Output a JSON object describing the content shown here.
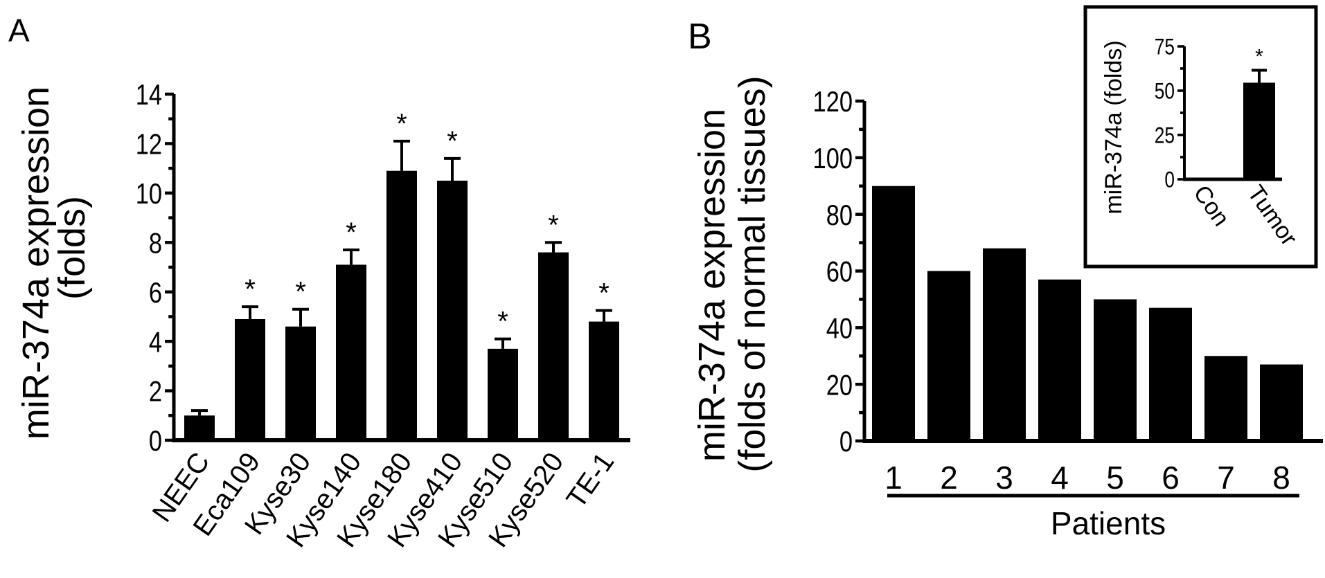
{
  "chart_data": [
    {
      "panel_label": "A",
      "type": "bar",
      "title": "",
      "xlabel": "",
      "ylabel": [
        "miR-374a expression",
        "(folds)"
      ],
      "ylim": [
        0,
        14
      ],
      "yticks": [
        0,
        2,
        4,
        6,
        8,
        10,
        12,
        14
      ],
      "categories": [
        "NEEC",
        "Eca109",
        "Kyse30",
        "Kyse140",
        "Kyse180",
        "Kyse410",
        "Kyse510",
        "Kyse520",
        "TE-1"
      ],
      "values": [
        1.0,
        4.9,
        4.6,
        7.1,
        10.9,
        10.5,
        3.7,
        7.6,
        4.8
      ],
      "error_upper": [
        0.2,
        0.5,
        0.7,
        0.6,
        1.2,
        0.9,
        0.4,
        0.4,
        0.45
      ],
      "significance": [
        "",
        "*",
        "*",
        "*",
        "*",
        "*",
        "*",
        "*",
        "*"
      ],
      "grid": false,
      "color": "#000000"
    },
    {
      "panel_label": "B",
      "type": "bar",
      "title": "",
      "xlabel": "Patients",
      "ylabel": [
        "miR-374a expression",
        "(folds of normal tissues)"
      ],
      "ylim": [
        0,
        120
      ],
      "yticks": [
        0,
        20,
        40,
        60,
        80,
        100,
        120
      ],
      "categories": [
        "1",
        "2",
        "3",
        "4",
        "5",
        "6",
        "7",
        "8"
      ],
      "values": [
        90,
        60,
        68,
        57,
        50,
        47,
        30,
        27
      ],
      "grid": false,
      "color": "#000000"
    },
    {
      "panel_label": "B-inset",
      "type": "bar",
      "title": "",
      "xlabel": "",
      "ylabel": [
        "miR-374a (folds)"
      ],
      "ylim": [
        0,
        75
      ],
      "yticks": [
        0,
        25,
        50,
        75
      ],
      "categories": [
        "Con",
        "Tumor"
      ],
      "values": [
        0.5,
        54.5
      ],
      "error_upper": [
        0,
        7
      ],
      "significance": [
        "",
        "*"
      ],
      "grid": false,
      "legend_position": "top-right",
      "color": "#000000"
    }
  ]
}
